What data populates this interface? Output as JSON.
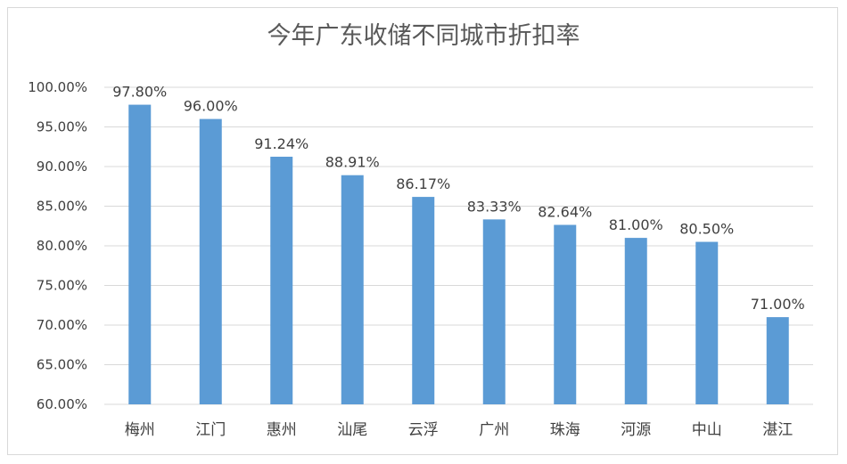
{
  "chart_data": {
    "type": "bar",
    "title": "今年广东收储不同城市折扣率",
    "categories": [
      "梅州",
      "江门",
      "惠州",
      "汕尾",
      "云浮",
      "广州",
      "珠海",
      "河源",
      "中山",
      "湛江"
    ],
    "values": [
      97.8,
      96.0,
      91.24,
      88.91,
      86.17,
      83.33,
      82.64,
      81.0,
      80.5,
      71.0
    ],
    "data_labels": [
      "97.80%",
      "96.00%",
      "91.24%",
      "88.91%",
      "86.17%",
      "83.33%",
      "82.64%",
      "81.00%",
      "80.50%",
      "71.00%"
    ],
    "yticks": [
      "60.00%",
      "65.00%",
      "70.00%",
      "75.00%",
      "80.00%",
      "85.00%",
      "90.00%",
      "95.00%",
      "100.00%"
    ],
    "ylim": [
      60,
      100
    ],
    "grid": true,
    "bar_color": "#5b9bd5",
    "grid_color": "#d9d9d9",
    "xlabel": "",
    "ylabel": ""
  }
}
